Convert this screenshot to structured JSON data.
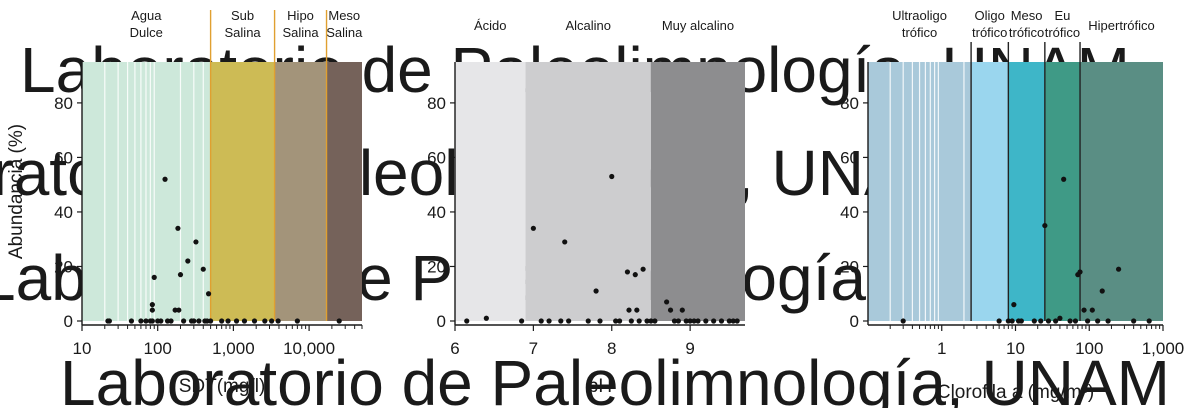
{
  "watermark": {
    "text": "Laboratorio de Paleolimnología, UNAM",
    "color": "#d8d8d8"
  },
  "chart_data": [
    {
      "type": "scatter",
      "xlabel": "SDT(mg/l)",
      "ylabel": "Abundancia (%)",
      "xscale": "log",
      "xlim": [
        10,
        50000
      ],
      "ylim": [
        0,
        95
      ],
      "xticks": [
        {
          "value": 10,
          "label": "10"
        },
        {
          "value": 100,
          "label": "100"
        },
        {
          "value": 1000,
          "label": "1,000"
        },
        {
          "value": 10000,
          "label": "10,000"
        }
      ],
      "yticks": [
        {
          "value": 0,
          "label": "0"
        },
        {
          "value": 20,
          "label": "20"
        },
        {
          "value": 40,
          "label": "40"
        },
        {
          "value": 60,
          "label": "60"
        },
        {
          "value": 80,
          "label": "80"
        }
      ],
      "zones": [
        {
          "label": [
            "Agua",
            "Dulce"
          ],
          "from": 10,
          "to": 500,
          "color": "#cde8da"
        },
        {
          "label": [
            "Sub",
            "Salina"
          ],
          "from": 500,
          "to": 3500,
          "color": "#cdbb55"
        },
        {
          "label": [
            "Hipo",
            "Salina"
          ],
          "from": 3500,
          "to": 17000,
          "color": "#a3947a"
        },
        {
          "label": [
            "Meso",
            "Salina"
          ],
          "from": 17000,
          "to": 50000,
          "color": "#75625a"
        }
      ],
      "boundaries": [
        {
          "value": 500,
          "color": "#e0a030"
        },
        {
          "value": 3500,
          "color": "#e0a030"
        },
        {
          "value": 17000,
          "color": "#e0a030"
        }
      ],
      "points": [
        {
          "x": 22,
          "y": 0
        },
        {
          "x": 23,
          "y": 0
        },
        {
          "x": 45,
          "y": 0
        },
        {
          "x": 60,
          "y": 0
        },
        {
          "x": 70,
          "y": 0
        },
        {
          "x": 80,
          "y": 0
        },
        {
          "x": 85,
          "y": 0
        },
        {
          "x": 85,
          "y": 4
        },
        {
          "x": 85,
          "y": 6
        },
        {
          "x": 90,
          "y": 16
        },
        {
          "x": 100,
          "y": 0
        },
        {
          "x": 110,
          "y": 0
        },
        {
          "x": 125,
          "y": 52
        },
        {
          "x": 135,
          "y": 0
        },
        {
          "x": 150,
          "y": 0
        },
        {
          "x": 170,
          "y": 4
        },
        {
          "x": 185,
          "y": 34
        },
        {
          "x": 190,
          "y": 4
        },
        {
          "x": 200,
          "y": 17
        },
        {
          "x": 220,
          "y": 0
        },
        {
          "x": 250,
          "y": 22
        },
        {
          "x": 280,
          "y": 0
        },
        {
          "x": 300,
          "y": 0
        },
        {
          "x": 320,
          "y": 29
        },
        {
          "x": 350,
          "y": 0
        },
        {
          "x": 400,
          "y": 19
        },
        {
          "x": 420,
          "y": 0
        },
        {
          "x": 450,
          "y": 0
        },
        {
          "x": 470,
          "y": 10
        },
        {
          "x": 500,
          "y": 0
        },
        {
          "x": 700,
          "y": 0
        },
        {
          "x": 850,
          "y": 0
        },
        {
          "x": 1100,
          "y": 0
        },
        {
          "x": 1400,
          "y": 0
        },
        {
          "x": 1900,
          "y": 0
        },
        {
          "x": 2600,
          "y": 0
        },
        {
          "x": 3200,
          "y": 0
        },
        {
          "x": 3900,
          "y": 0
        },
        {
          "x": 7000,
          "y": 0
        },
        {
          "x": 25000,
          "y": 0
        }
      ]
    },
    {
      "type": "scatter",
      "xlabel": "pH",
      "ylabel": "",
      "xscale": "linear",
      "xlim": [
        6,
        9.7
      ],
      "ylim": [
        0,
        95
      ],
      "xticks": [
        {
          "value": 6,
          "label": "6"
        },
        {
          "value": 7,
          "label": "7"
        },
        {
          "value": 8,
          "label": "8"
        },
        {
          "value": 9,
          "label": "9"
        }
      ],
      "yticks": [
        {
          "value": 0,
          "label": "0"
        },
        {
          "value": 20,
          "label": "20"
        },
        {
          "value": 40,
          "label": "40"
        },
        {
          "value": 60,
          "label": "60"
        },
        {
          "value": 80,
          "label": "80"
        }
      ],
      "zones": [
        {
          "label": [
            "Ácido"
          ],
          "from": 6,
          "to": 6.9,
          "color": "#e6e6e8"
        },
        {
          "label": [
            "Alcalino"
          ],
          "from": 6.9,
          "to": 8.5,
          "color": "#cdcdcf"
        },
        {
          "label": [
            "Muy alcalino"
          ],
          "from": 8.5,
          "to": 9.7,
          "color": "#8d8d8f"
        }
      ],
      "boundaries": [],
      "points": [
        {
          "x": 6.15,
          "y": 0
        },
        {
          "x": 6.4,
          "y": 1
        },
        {
          "x": 6.85,
          "y": 0
        },
        {
          "x": 7.0,
          "y": 34
        },
        {
          "x": 7.1,
          "y": 0
        },
        {
          "x": 7.2,
          "y": 0
        },
        {
          "x": 7.35,
          "y": 0
        },
        {
          "x": 7.4,
          "y": 29
        },
        {
          "x": 7.45,
          "y": 0
        },
        {
          "x": 7.7,
          "y": 0
        },
        {
          "x": 7.8,
          "y": 11
        },
        {
          "x": 7.85,
          "y": 0
        },
        {
          "x": 8.0,
          "y": 53
        },
        {
          "x": 8.05,
          "y": 0
        },
        {
          "x": 8.1,
          "y": 0
        },
        {
          "x": 8.2,
          "y": 18
        },
        {
          "x": 8.22,
          "y": 4
        },
        {
          "x": 8.25,
          "y": 0
        },
        {
          "x": 8.3,
          "y": 17
        },
        {
          "x": 8.32,
          "y": 4
        },
        {
          "x": 8.35,
          "y": 0
        },
        {
          "x": 8.4,
          "y": 19
        },
        {
          "x": 8.45,
          "y": 0
        },
        {
          "x": 8.5,
          "y": 0
        },
        {
          "x": 8.55,
          "y": 0
        },
        {
          "x": 8.7,
          "y": 7
        },
        {
          "x": 8.75,
          "y": 4
        },
        {
          "x": 8.8,
          "y": 0
        },
        {
          "x": 8.85,
          "y": 0
        },
        {
          "x": 8.9,
          "y": 4
        },
        {
          "x": 8.95,
          "y": 0
        },
        {
          "x": 9.0,
          "y": 0
        },
        {
          "x": 9.05,
          "y": 0
        },
        {
          "x": 9.1,
          "y": 0
        },
        {
          "x": 9.2,
          "y": 0
        },
        {
          "x": 9.3,
          "y": 0
        },
        {
          "x": 9.4,
          "y": 0
        },
        {
          "x": 9.5,
          "y": 0
        },
        {
          "x": 9.55,
          "y": 0
        },
        {
          "x": 9.6,
          "y": 0
        }
      ]
    },
    {
      "type": "scatter",
      "xlabel": "Clorofila a (mg/m³)",
      "ylabel": "",
      "xscale": "log",
      "xlim": [
        0.1,
        1000
      ],
      "ylim": [
        0,
        95
      ],
      "xticks": [
        {
          "value": 1,
          "label": "1"
        },
        {
          "value": 10,
          "label": "10"
        },
        {
          "value": 100,
          "label": "100"
        },
        {
          "value": 1000,
          "label": "1,000"
        }
      ],
      "yticks": [
        {
          "value": 0,
          "label": "0"
        },
        {
          "value": 20,
          "label": "20"
        },
        {
          "value": 40,
          "label": "40"
        },
        {
          "value": 60,
          "label": "60"
        },
        {
          "value": 80,
          "label": "80"
        }
      ],
      "zones": [
        {
          "label": [
            "Ultraoligo",
            "trófico"
          ],
          "from": 0.1,
          "to": 2.5,
          "color": "#a9c9da"
        },
        {
          "label": [
            "Oligo",
            "trófico"
          ],
          "from": 2.5,
          "to": 8,
          "color": "#9ad6ee"
        },
        {
          "label": [
            "Meso",
            "trófico"
          ],
          "from": 8,
          "to": 25,
          "color": "#3eb6c8"
        },
        {
          "label": [
            "Eu",
            "trófico"
          ],
          "from": 25,
          "to": 75,
          "color": "#3f9a86"
        },
        {
          "label": [
            "Hipertrófico"
          ],
          "from": 75,
          "to": 1000,
          "color": "#5a8e84"
        }
      ],
      "boundaries": [
        {
          "value": 2.5,
          "color": "#222222"
        },
        {
          "value": 8,
          "color": "#222222"
        },
        {
          "value": 25,
          "color": "#222222"
        },
        {
          "value": 75,
          "color": "#222222"
        }
      ],
      "points": [
        {
          "x": 0.3,
          "y": 0
        },
        {
          "x": 6,
          "y": 0
        },
        {
          "x": 8,
          "y": 0
        },
        {
          "x": 9,
          "y": 0
        },
        {
          "x": 9.5,
          "y": 6
        },
        {
          "x": 11,
          "y": 0
        },
        {
          "x": 12,
          "y": 0
        },
        {
          "x": 18,
          "y": 0
        },
        {
          "x": 22,
          "y": 0
        },
        {
          "x": 25,
          "y": 35
        },
        {
          "x": 28,
          "y": 0
        },
        {
          "x": 35,
          "y": 0
        },
        {
          "x": 40,
          "y": 1
        },
        {
          "x": 45,
          "y": 52
        },
        {
          "x": 55,
          "y": 0
        },
        {
          "x": 65,
          "y": 0
        },
        {
          "x": 70,
          "y": 17
        },
        {
          "x": 75,
          "y": 18
        },
        {
          "x": 85,
          "y": 4
        },
        {
          "x": 95,
          "y": 0
        },
        {
          "x": 110,
          "y": 4
        },
        {
          "x": 130,
          "y": 0
        },
        {
          "x": 150,
          "y": 11
        },
        {
          "x": 180,
          "y": 0
        },
        {
          "x": 250,
          "y": 19
        },
        {
          "x": 400,
          "y": 0
        },
        {
          "x": 650,
          "y": 0
        }
      ]
    }
  ]
}
